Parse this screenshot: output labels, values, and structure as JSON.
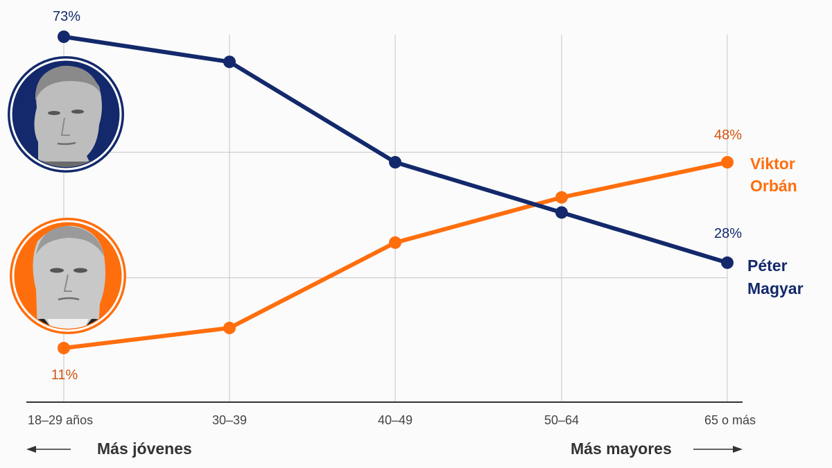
{
  "colors": {
    "magyar": "#13296b",
    "orban": "#ff6e0d",
    "orban_label": "#d3530f",
    "grid": "#c4c4c4",
    "axis": "#333333",
    "text": "#444444",
    "background": "#fbfbfb"
  },
  "photos": {
    "magyar": {
      "name": "Péter Magyar",
      "icon": "portrait-photo"
    },
    "orban": {
      "name": "Viktor Orbán",
      "icon": "portrait-photo"
    }
  },
  "legend": {
    "orban_line1": "Viktor",
    "orban_line2": "Orbán",
    "magyar_line1": "Péter",
    "magyar_line2": "Magyar"
  },
  "annotations": {
    "magyar_first": "73%",
    "magyar_last": "28%",
    "orban_first": "11%",
    "orban_last": "48%"
  },
  "axis": {
    "younger_label": "Más jóvenes",
    "older_label": "Más mayores"
  },
  "chart_data": {
    "type": "line",
    "title": "",
    "xlabel": "",
    "ylabel": "",
    "categories": [
      "18–29 años",
      "30–39",
      "40–49",
      "50–64",
      "65 o más"
    ],
    "series": [
      {
        "name": "Péter Magyar",
        "color": "#13296b",
        "values": [
          73,
          68,
          48,
          38,
          28
        ]
      },
      {
        "name": "Viktor Orbán",
        "color": "#ff6e0d",
        "values": [
          11,
          15,
          32,
          41,
          48
        ]
      }
    ],
    "labeled_points": {
      "Péter Magyar": [
        "73%",
        null,
        null,
        null,
        "28%"
      ],
      "Viktor Orbán": [
        "11%",
        null,
        null,
        null,
        "48%"
      ]
    },
    "ylim": [
      0,
      80
    ],
    "gridlines_y": [
      25,
      50
    ],
    "grid": true,
    "legend_position": "right, inline at line ends",
    "x_direction_labels": [
      "← Más jóvenes",
      "Más mayores →"
    ]
  }
}
